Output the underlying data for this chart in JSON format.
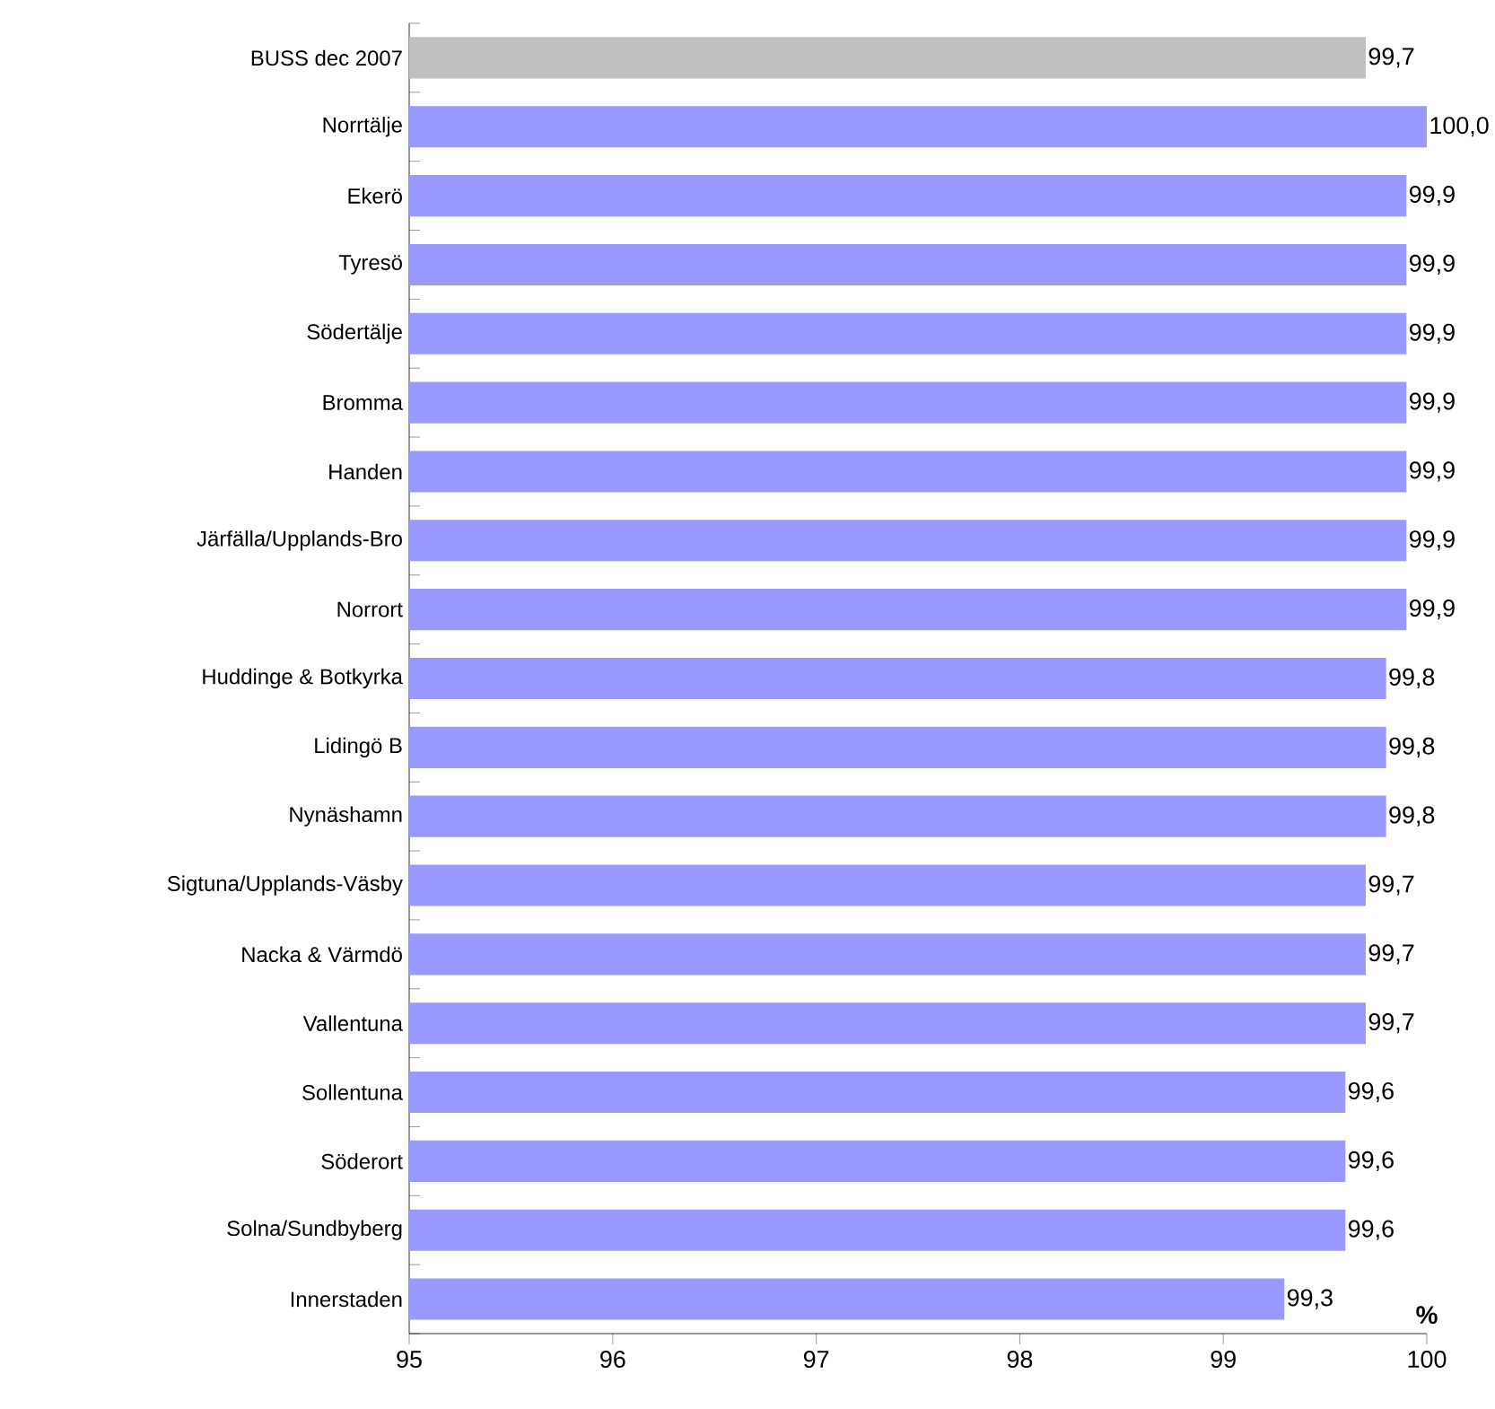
{
  "chart_data": {
    "type": "bar",
    "orientation": "horizontal",
    "xlabel": "%",
    "categories": [
      "BUSS dec 2007",
      "Norrtälje",
      "Ekerö",
      "Tyresö",
      "Södertälje",
      "Bromma",
      "Handen",
      "Järfälla/Upplands-Bro",
      "Norrort",
      "Huddinge & Botkyrka",
      "Lidingö B",
      "Nynäshamn",
      "Sigtuna/Upplands-Väsby",
      "Nacka & Värmdö",
      "Vallentuna",
      "Sollentuna",
      "Söderort",
      "Solna/Sundbyberg",
      "Innerstaden"
    ],
    "values": [
      99.7,
      100.0,
      99.9,
      99.9,
      99.9,
      99.9,
      99.9,
      99.9,
      99.9,
      99.8,
      99.8,
      99.8,
      99.7,
      99.7,
      99.7,
      99.6,
      99.6,
      99.6,
      99.3
    ],
    "value_labels": [
      "99,7",
      "100,0",
      "99,9",
      "99,9",
      "99,9",
      "99,9",
      "99,9",
      "99,9",
      "99,9",
      "99,8",
      "99,8",
      "99,8",
      "99,7",
      "99,7",
      "99,7",
      "99,6",
      "99,6",
      "99,6",
      "99,3"
    ],
    "colors": [
      "#c0c0c0",
      "#9999ff",
      "#9999ff",
      "#9999ff",
      "#9999ff",
      "#9999ff",
      "#9999ff",
      "#9999ff",
      "#9999ff",
      "#9999ff",
      "#9999ff",
      "#9999ff",
      "#9999ff",
      "#9999ff",
      "#9999ff",
      "#9999ff",
      "#9999ff",
      "#9999ff",
      "#9999ff"
    ],
    "xlim": [
      95,
      100
    ],
    "xticks": [
      95,
      96,
      97,
      98,
      99,
      100
    ]
  }
}
